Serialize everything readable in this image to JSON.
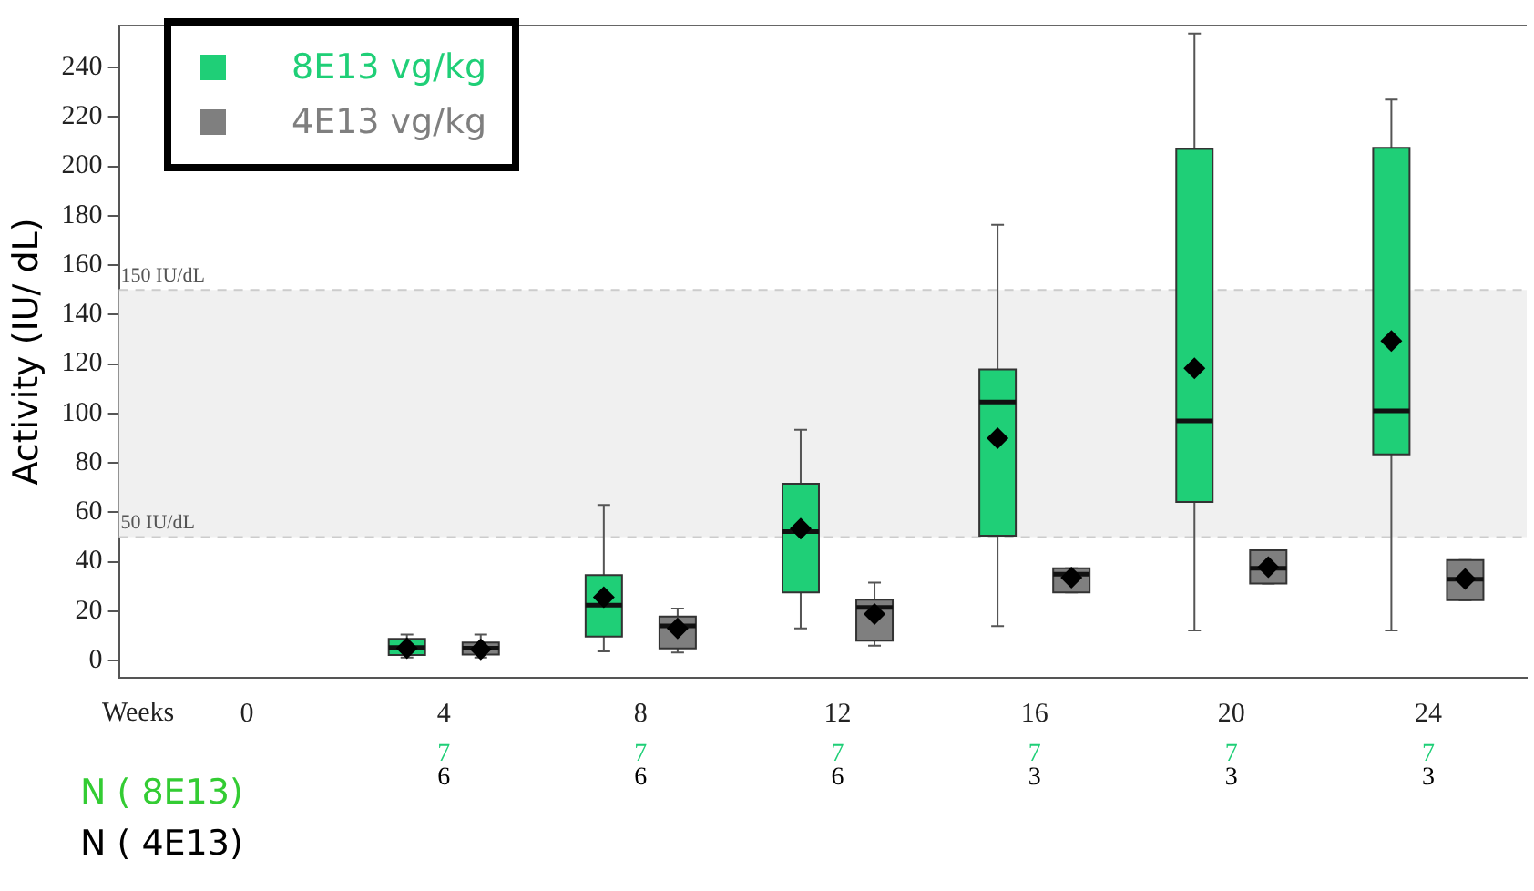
{
  "chart_data": {
    "type": "box",
    "ylabel": "Activity (IU/ dL)",
    "xlabel": "Weeks",
    "x": [
      4,
      8,
      12,
      16,
      20,
      24
    ],
    "xlim": [
      -2.6,
      26
    ],
    "xticks": [
      0,
      4,
      8,
      12,
      16,
      20,
      24
    ],
    "ylim": [
      -7,
      257
    ],
    "yticks": [
      0,
      20,
      40,
      60,
      80,
      100,
      120,
      140,
      160,
      180,
      200,
      220,
      240
    ],
    "legend": "top left",
    "grid": false,
    "series": [
      {
        "name": "8E13 vg/kg",
        "color": "#1fcf77",
        "boxes": [
          {
            "low": 1.2,
            "q1": 2.2,
            "median": 5.3,
            "q3": 8.8,
            "high": 10.5,
            "mean": 5
          },
          {
            "low": 3.7,
            "q1": 9.7,
            "median": 22.4,
            "q3": 34.6,
            "high": 63,
            "mean": 25.6
          },
          {
            "low": 13,
            "q1": 27.6,
            "median": 52.2,
            "q3": 71.5,
            "high": 93.4,
            "mean": 53.4
          },
          {
            "low": 13.9,
            "q1": 50.5,
            "median": 104.6,
            "q3": 117.8,
            "high": 176.3,
            "mean": 90
          },
          {
            "low": 12.2,
            "q1": 64.2,
            "median": 97,
            "q3": 207,
            "high": 253.8,
            "mean": 118.3
          },
          {
            "low": 12.2,
            "q1": 83.4,
            "median": 101,
            "q3": 207.5,
            "high": 227,
            "mean": 129.3
          }
        ]
      },
      {
        "name": "4E13 vg/kg",
        "color": "#7f7f7f",
        "boxes": [
          {
            "low": 1.2,
            "q1": 2.4,
            "median": 5,
            "q3": 7.3,
            "high": 10.5,
            "mean": 4.5
          },
          {
            "low": 3.2,
            "q1": 4.9,
            "median": 14,
            "q3": 17.8,
            "high": 21,
            "mean": 13
          },
          {
            "low": 6,
            "q1": 8,
            "median": 21.5,
            "q3": 24.6,
            "high": 31.5,
            "mean": 18.8
          },
          {
            "low": 27.6,
            "q1": 27.6,
            "median": 34.9,
            "q3": 37.3,
            "high": 37.3,
            "mean": 33.6
          },
          {
            "low": 31.2,
            "q1": 31.2,
            "median": 37.3,
            "q3": 44.6,
            "high": 44.6,
            "mean": 37.8
          },
          {
            "low": 24.4,
            "q1": 24.4,
            "median": 32.9,
            "q3": 40.7,
            "high": 40.7,
            "mean": 33
          }
        ]
      }
    ],
    "bands": [
      {
        "axis": "y",
        "from": 50,
        "to": 150,
        "color": "#f0f0f0"
      }
    ],
    "ref_lines": [
      {
        "axis": "y",
        "value": 150,
        "label": "150 IU/dL",
        "color": "#cccccc",
        "line_style": "dashed"
      },
      {
        "axis": "y",
        "value": 50,
        "label": "50 IU/dL",
        "color": "#cccccc",
        "line_style": "dashed"
      }
    ],
    "annotations": [
      "N ( 8E13)",
      "N ( 4E13)",
      "7",
      "7",
      "7",
      "7",
      "7",
      "7",
      "6",
      "6",
      "6",
      "3",
      "3",
      "3"
    ]
  }
}
